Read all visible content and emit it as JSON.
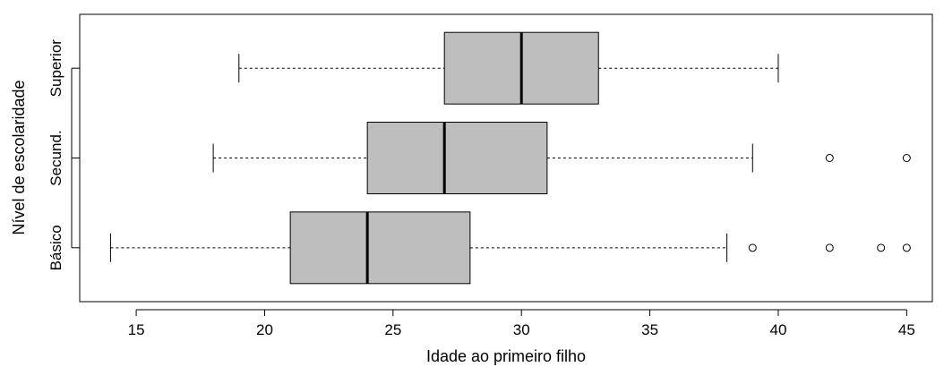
{
  "chart_data": {
    "type": "boxplot",
    "orientation": "horizontal",
    "xlabel": "Idade ao primeiro filho",
    "ylabel": "Nível de escolaridade",
    "xlim": [
      12.8,
      46.0
    ],
    "xticks": [
      15,
      20,
      25,
      30,
      35,
      40,
      45
    ],
    "grid": false,
    "colors": {
      "box_fill": "#bebebe",
      "stroke": "#000000",
      "outlier_fill": "#ffffff"
    },
    "categories": [
      "Básico",
      "Secund.",
      "Superior"
    ],
    "boxes": [
      {
        "category": "Básico",
        "whisker_low": 14,
        "q1": 21,
        "median": 24,
        "q3": 28,
        "whisker_high": 38,
        "outliers": [
          39,
          42,
          44,
          45
        ]
      },
      {
        "category": "Secund.",
        "whisker_low": 18,
        "q1": 24,
        "median": 27,
        "q3": 31,
        "whisker_high": 39,
        "outliers": [
          42,
          45
        ]
      },
      {
        "category": "Superior",
        "whisker_low": 19,
        "q1": 27,
        "median": 30,
        "q3": 33,
        "whisker_high": 40,
        "outliers": []
      }
    ]
  }
}
